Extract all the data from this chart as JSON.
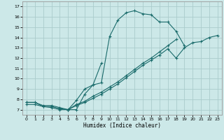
{
  "xlabel": "Humidex (Indice chaleur)",
  "background_color": "#cce8e8",
  "grid_color": "#aacccc",
  "line_color": "#1a6b6b",
  "xlim": [
    -0.5,
    23.5
  ],
  "ylim": [
    6.5,
    17.5
  ],
  "xticks": [
    0,
    1,
    2,
    3,
    4,
    5,
    6,
    7,
    8,
    9,
    10,
    11,
    12,
    13,
    14,
    15,
    16,
    17,
    18,
    19,
    20,
    21,
    22,
    23
  ],
  "yticks": [
    7,
    8,
    9,
    10,
    11,
    12,
    13,
    14,
    15,
    16,
    17
  ],
  "curve1_x": [
    0,
    1,
    2,
    3,
    4,
    5,
    6,
    7,
    8,
    9,
    10,
    11,
    12,
    13,
    14,
    15,
    16,
    17,
    18,
    19
  ],
  "curve1_y": [
    7.7,
    7.7,
    7.4,
    7.4,
    7.2,
    7.0,
    7.9,
    9.0,
    9.4,
    9.6,
    14.1,
    15.7,
    16.4,
    16.6,
    16.3,
    16.2,
    15.5,
    15.5,
    14.6,
    13.2
  ],
  "curve2_x": [
    0,
    1,
    2,
    3,
    4,
    5,
    6,
    7,
    8,
    9,
    10,
    11,
    12,
    13,
    14,
    15,
    16,
    17,
    18,
    19,
    20,
    21,
    22,
    23
  ],
  "curve2_y": [
    7.7,
    7.7,
    7.3,
    7.3,
    7.1,
    7.0,
    7.5,
    7.8,
    8.3,
    8.7,
    9.2,
    9.7,
    10.3,
    10.9,
    11.5,
    12.0,
    12.6,
    13.2,
    13.8,
    null,
    null,
    null,
    null,
    null
  ],
  "curve3_x": [
    0,
    1,
    2,
    3,
    4,
    5,
    6,
    7,
    8,
    9,
    10,
    11,
    12,
    13,
    14,
    15,
    16,
    17,
    18,
    19,
    20,
    21,
    22,
    23
  ],
  "curve3_y": [
    7.5,
    7.5,
    7.3,
    7.2,
    7.0,
    7.0,
    7.4,
    7.7,
    8.1,
    8.5,
    9.0,
    9.5,
    10.1,
    10.7,
    11.3,
    11.8,
    12.3,
    12.9,
    12.0,
    13.0,
    13.5,
    13.6,
    14.0,
    14.2
  ],
  "curve4_x": [
    5,
    6,
    7,
    8,
    9
  ],
  "curve4_y": [
    7.0,
    7.0,
    8.5,
    9.4,
    11.5
  ]
}
